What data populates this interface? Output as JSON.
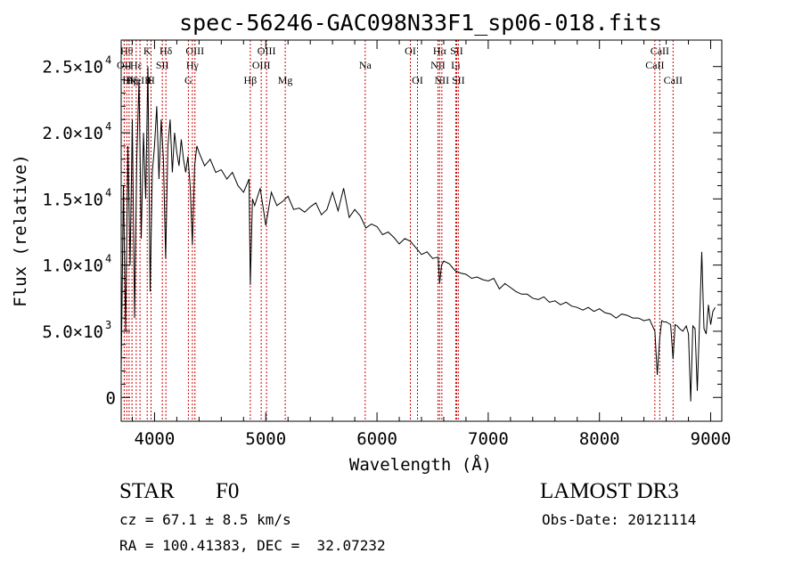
{
  "chart_data": {
    "type": "line",
    "title": "spec-56246-GAC098N33F1_sp06-018.fits",
    "xlabel": "Wavelength (Å)",
    "ylabel": "Flux (relative)",
    "xlim": [
      3700,
      9100
    ],
    "ylim": [
      -1800,
      27000
    ],
    "x_ticks": [
      4000,
      5000,
      6000,
      7000,
      8000,
      9000
    ],
    "y_ticks": [
      {
        "value": 0,
        "mant": "0",
        "exp": ""
      },
      {
        "value": 5000,
        "mant": "5.0×10",
        "exp": "3"
      },
      {
        "value": 10000,
        "mant": "1.0×10",
        "exp": "4"
      },
      {
        "value": 15000,
        "mant": "1.5×10",
        "exp": "4"
      },
      {
        "value": 20000,
        "mant": "2.0×10",
        "exp": "4"
      },
      {
        "value": 25000,
        "mant": "2.5×10",
        "exp": "4"
      }
    ],
    "grid": false,
    "series": [
      {
        "color": "#000000",
        "x": [
          3700,
          3720,
          3740,
          3760,
          3780,
          3800,
          3820,
          3840,
          3860,
          3880,
          3900,
          3920,
          3940,
          3960,
          3980,
          4000,
          4020,
          4040,
          4060,
          4080,
          4100,
          4120,
          4140,
          4160,
          4180,
          4200,
          4220,
          4240,
          4260,
          4280,
          4300,
          4320,
          4340,
          4360,
          4380,
          4400,
          4450,
          4500,
          4550,
          4600,
          4650,
          4700,
          4750,
          4800,
          4850,
          4861,
          4880,
          4900,
          4950,
          5000,
          5050,
          5100,
          5150,
          5200,
          5250,
          5300,
          5350,
          5400,
          5450,
          5500,
          5550,
          5600,
          5650,
          5700,
          5750,
          5800,
          5850,
          5900,
          5950,
          6000,
          6050,
          6100,
          6150,
          6200,
          6250,
          6300,
          6350,
          6400,
          6450,
          6500,
          6550,
          6563,
          6580,
          6600,
          6650,
          6700,
          6750,
          6800,
          6850,
          6900,
          6950,
          7000,
          7050,
          7100,
          7150,
          7200,
          7250,
          7300,
          7350,
          7400,
          7450,
          7500,
          7550,
          7600,
          7650,
          7700,
          7750,
          7800,
          7850,
          7900,
          7950,
          8000,
          8050,
          8100,
          8150,
          8200,
          8250,
          8300,
          8350,
          8400,
          8450,
          8498,
          8520,
          8542,
          8560,
          8580,
          8600,
          8620,
          8640,
          8662,
          8680,
          8700,
          8720,
          8750,
          8780,
          8800,
          8820,
          8840,
          8860,
          8880,
          8900,
          8920,
          8940,
          8960,
          8980,
          9000,
          9020,
          9040
        ],
        "y": [
          2000,
          16000,
          5000,
          19000,
          10000,
          21000,
          6000,
          18000,
          24000,
          12000,
          20000,
          15000,
          25000,
          8000,
          17000,
          19000,
          22000,
          16500,
          21000,
          18000,
          10500,
          19000,
          21000,
          17000,
          20000,
          18500,
          17500,
          19500,
          18000,
          17000,
          18200,
          16000,
          11500,
          17500,
          19000,
          18500,
          17500,
          18000,
          17000,
          17200,
          16500,
          17000,
          16000,
          15500,
          16500,
          8500,
          15000,
          14500,
          15800,
          13000,
          15500,
          14500,
          14800,
          15200,
          14200,
          14300,
          14000,
          14400,
          14700,
          13800,
          14200,
          15500,
          14100,
          15800,
          13600,
          14200,
          13700,
          12800,
          13100,
          12900,
          12300,
          12500,
          12100,
          11600,
          12000,
          11800,
          11300,
          10800,
          11000,
          10500,
          10600,
          8600,
          10000,
          10300,
          10100,
          9600,
          9400,
          9300,
          9000,
          9100,
          8900,
          8800,
          9000,
          8200,
          8600,
          8300,
          8000,
          7800,
          7800,
          7500,
          7400,
          7600,
          7200,
          7300,
          7000,
          7200,
          6900,
          6800,
          6600,
          6800,
          6500,
          6700,
          6400,
          6300,
          6000,
          6300,
          6200,
          6000,
          6000,
          5800,
          5900,
          5000,
          1700,
          4500,
          5800,
          5700,
          5700,
          5600,
          5500,
          2900,
          5500,
          5400,
          5200,
          5000,
          5400,
          4800,
          -300,
          5400,
          5200,
          500,
          5600,
          11000,
          5200,
          4800,
          7000,
          5500,
          6500,
          6800
        ]
      }
    ],
    "line_markers": [
      {
        "wave": 3727,
        "label": "OII",
        "row": 1
      },
      {
        "wave": 3750,
        "label": "Hθ",
        "row": 0
      },
      {
        "wave": 3771,
        "label": "Hη",
        "row": 2
      },
      {
        "wave": 3797,
        "label": "Hζ",
        "row": 2
      },
      {
        "wave": 3835,
        "label": "Hε",
        "row": 1
      },
      {
        "wave": 3869,
        "label": "NeIII",
        "row": 2
      },
      {
        "wave": 3934,
        "label": "K",
        "row": 0
      },
      {
        "wave": 3968,
        "label": "H",
        "row": 2
      },
      {
        "wave": 4070,
        "label": "SII",
        "row": 1
      },
      {
        "wave": 4102,
        "label": "Hδ",
        "row": 0
      },
      {
        "wave": 4304,
        "label": "G",
        "row": 2
      },
      {
        "wave": 4340,
        "label": "Hγ",
        "row": 1
      },
      {
        "wave": 4363,
        "label": "OIII",
        "row": 0
      },
      {
        "wave": 4861,
        "label": "Hβ",
        "row": 2
      },
      {
        "wave": 4959,
        "label": "OIII",
        "row": 1
      },
      {
        "wave": 5007,
        "label": "OIII",
        "row": 0
      },
      {
        "wave": 5175,
        "label": "Mg",
        "row": 2
      },
      {
        "wave": 5894,
        "label": "Na",
        "row": 1
      },
      {
        "wave": 6300,
        "label": "OI",
        "row": 0
      },
      {
        "wave": 6364,
        "label": "OI",
        "row": 2
      },
      {
        "wave": 6548,
        "label": "NII",
        "row": 1
      },
      {
        "wave": 6563,
        "label": "Hα",
        "row": 0
      },
      {
        "wave": 6583,
        "label": "NII",
        "row": 2
      },
      {
        "wave": 6708,
        "label": "Li",
        "row": 1
      },
      {
        "wave": 6716,
        "label": "SII",
        "row": 0
      },
      {
        "wave": 6731,
        "label": "SII",
        "row": 2
      },
      {
        "wave": 8498,
        "label": "CaII",
        "row": 1
      },
      {
        "wave": 8542,
        "label": "CaII",
        "row": 0
      },
      {
        "wave": 8662,
        "label": "CaII",
        "row": 2
      }
    ]
  },
  "info": {
    "class": "STAR",
    "subclass": "F0",
    "survey": "LAMOST DR3",
    "cz_line": "cz = 67.1 ± 8.5 km/s",
    "obs_date_line": "Obs-Date: 20121114",
    "radec_line": "RA = 100.41383, DEC =  32.07232"
  }
}
